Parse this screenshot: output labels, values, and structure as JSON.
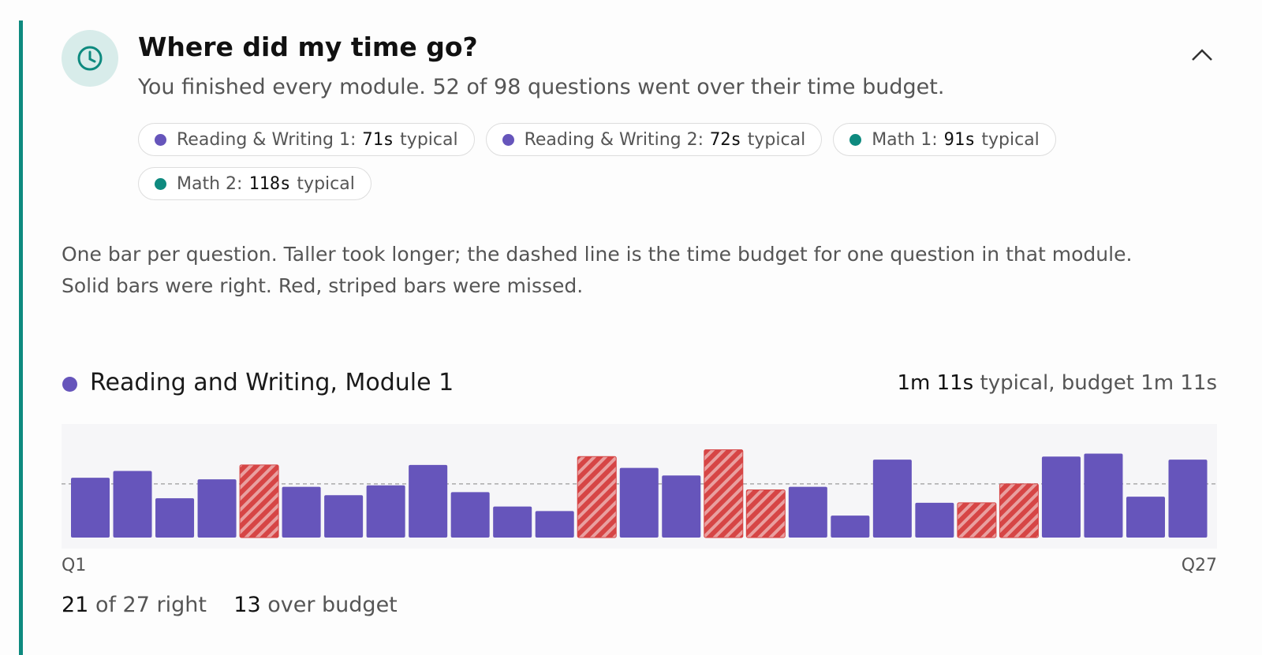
{
  "header": {
    "title": "Where did my time go?",
    "subtitle": "You finished every module. 52 of 98 questions went over their time budget.",
    "chips": [
      {
        "label": "Reading & Writing 1:",
        "value": "71s",
        "suffix": "typical",
        "color": "#6655bb"
      },
      {
        "label": "Reading & Writing 2:",
        "value": "72s",
        "suffix": "typical",
        "color": "#6655bb"
      },
      {
        "label": "Math 1:",
        "value": "91s",
        "suffix": "typical",
        "color": "#0e8a7f"
      },
      {
        "label": "Math 2:",
        "value": "118s",
        "suffix": "typical",
        "color": "#0e8a7f"
      }
    ]
  },
  "description": [
    "One bar per question. Taller took longer; the dashed line is the time budget for one question in that module.",
    "Solid bars were right. Red, striped bars were missed."
  ],
  "section": {
    "typical_value": "1m 11s",
    "typical_text": "typical, budget 1m 11s"
  },
  "stats": {
    "right_count": "21",
    "right_text": "of 27 right",
    "over_count": "13",
    "over_text": "over budget"
  },
  "chart_data": {
    "type": "bar",
    "title": "Reading and Writing, Module 1",
    "categories": [
      "Q1",
      null,
      null,
      null,
      null,
      null,
      null,
      null,
      null,
      null,
      null,
      null,
      null,
      null,
      null,
      null,
      null,
      null,
      null,
      null,
      null,
      null,
      null,
      null,
      null,
      null,
      "Q27"
    ],
    "values": [
      79,
      88,
      52,
      77,
      96,
      67,
      56,
      69,
      96,
      60,
      41,
      35,
      107,
      92,
      82,
      116,
      63,
      67,
      29,
      103,
      46,
      46,
      71,
      107,
      111,
      54,
      103
    ],
    "correct": [
      true,
      true,
      true,
      true,
      false,
      true,
      true,
      true,
      true,
      true,
      true,
      true,
      false,
      true,
      true,
      false,
      false,
      true,
      true,
      true,
      true,
      false,
      false,
      true,
      true,
      true,
      true
    ],
    "color": "#6655bb",
    "missed_color": "#d64545",
    "budget": 71,
    "ylim": [
      0,
      150
    ]
  }
}
